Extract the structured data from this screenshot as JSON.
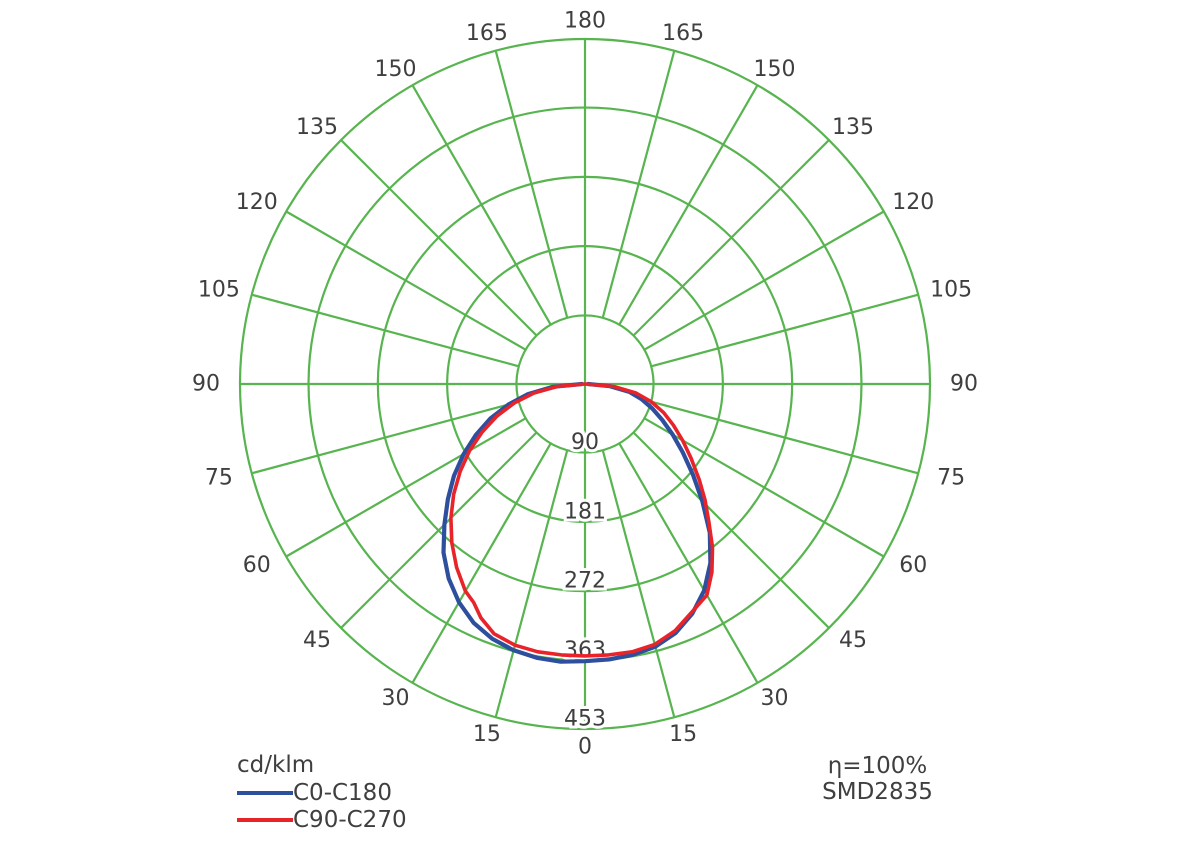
{
  "chart_data": {
    "type": "line",
    "projection": "polar",
    "description": "Photometric luminous intensity distribution curve (polar diagram), 0° at nadir (bottom), 180° at zenith (top), angle labels mirrored on both sides",
    "units_label": "cd/klm",
    "angle_ticks_deg": [
      0,
      15,
      30,
      45,
      60,
      75,
      90,
      105,
      120,
      135,
      150,
      165,
      180
    ],
    "angle_tick_step_deg": 15,
    "angle_labels_mirrored": true,
    "radial_ticks": [
      90,
      181,
      272,
      363,
      453
    ],
    "radial_max": 453,
    "grid": true,
    "grid_color": "#57b44f",
    "text_color": "#3f3f3f",
    "background_color": "#ffffff",
    "legend_position": "bottom-left",
    "series": [
      {
        "name": "C0-C180",
        "color": "#2d4f9d",
        "stroke_width": 4.2,
        "points_gamma_value": [
          [
            -90,
            4
          ],
          [
            -85,
            42
          ],
          [
            -80,
            76
          ],
          [
            -75,
            104
          ],
          [
            -70,
            132
          ],
          [
            -65,
            158
          ],
          [
            -60,
            184
          ],
          [
            -55,
            210
          ],
          [
            -50,
            235
          ],
          [
            -45,
            261
          ],
          [
            -40,
            289
          ],
          [
            -35,
            312
          ],
          [
            -30,
            331
          ],
          [
            -25,
            346
          ],
          [
            -20,
            356
          ],
          [
            -15,
            362
          ],
          [
            -10,
            365
          ],
          [
            -5,
            366
          ],
          [
            0,
            364
          ],
          [
            5,
            363
          ],
          [
            10,
            361
          ],
          [
            15,
            357
          ],
          [
            20,
            348
          ],
          [
            25,
            333
          ],
          [
            30,
            313
          ],
          [
            35,
            287
          ],
          [
            40,
            255
          ],
          [
            45,
            218
          ],
          [
            50,
            185
          ],
          [
            55,
            157
          ],
          [
            60,
            133
          ],
          [
            65,
            112
          ],
          [
            70,
            94
          ],
          [
            75,
            77
          ],
          [
            80,
            59
          ],
          [
            85,
            33
          ],
          [
            90,
            4
          ]
        ]
      },
      {
        "name": "C90-C270",
        "color": "#e8242a",
        "stroke_width": 3.6,
        "points_gamma_value": [
          [
            -90,
            0
          ],
          [
            -85,
            36
          ],
          [
            -80,
            68
          ],
          [
            -75,
            96
          ],
          [
            -70,
            123
          ],
          [
            -65,
            149
          ],
          [
            -60,
            175
          ],
          [
            -55,
            200
          ],
          [
            -50,
            225
          ],
          [
            -45,
            249
          ],
          [
            -40,
            272
          ],
          [
            -35,
            294
          ],
          [
            -30,
            314
          ],
          [
            -27,
            322
          ],
          [
            -24,
            336
          ],
          [
            -20,
            349
          ],
          [
            -15,
            355
          ],
          [
            -10,
            357
          ],
          [
            -5,
            357
          ],
          [
            0,
            357
          ],
          [
            5,
            357
          ],
          [
            10,
            357
          ],
          [
            15,
            354
          ],
          [
            20,
            345
          ],
          [
            25,
            331
          ],
          [
            30,
            320
          ],
          [
            34,
            298
          ],
          [
            38,
            272
          ],
          [
            42,
            243
          ],
          [
            46,
            219
          ],
          [
            50,
            196
          ],
          [
            55,
            170
          ],
          [
            60,
            148
          ],
          [
            65,
            128
          ],
          [
            70,
            110
          ],
          [
            75,
            90
          ],
          [
            80,
            68
          ],
          [
            85,
            38
          ],
          [
            90,
            0
          ]
        ]
      }
    ]
  },
  "legend": {
    "units_label": "cd/klm",
    "items": [
      {
        "label": "C0-C180",
        "color": "#2d4f9d"
      },
      {
        "label": "C90-C270",
        "color": "#e8242a"
      }
    ]
  },
  "annotations": {
    "efficiency": "η=100%",
    "source": "SMD2835"
  }
}
